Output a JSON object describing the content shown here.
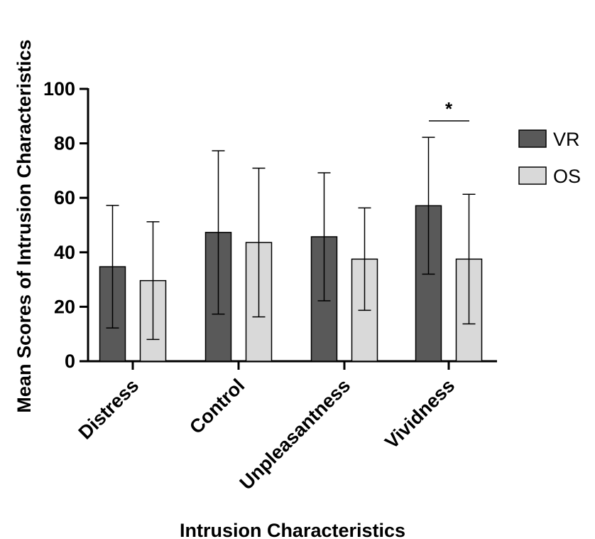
{
  "chart_data": {
    "type": "bar",
    "xlabel": "Intrusion Characteristics",
    "ylabel": "Mean Scores of Intrusion Characteristics",
    "ylim": [
      0,
      100
    ],
    "yticks": [
      0,
      20,
      40,
      60,
      80,
      100
    ],
    "categories": [
      "Distress",
      "Control",
      "Unpleasantness",
      "Vividness"
    ],
    "series": [
      {
        "name": "VR",
        "color": "#595959",
        "values": [
          34.7,
          47.3,
          45.7,
          57.1
        ],
        "error": [
          22.5,
          30.0,
          23.5,
          25.1
        ]
      },
      {
        "name": "OS",
        "color": "#d9d9d9",
        "values": [
          29.6,
          43.6,
          37.5,
          37.5
        ],
        "error": [
          21.6,
          27.3,
          18.8,
          23.8
        ]
      }
    ],
    "annotations": [
      {
        "text": "*",
        "category": "Vividness"
      }
    ],
    "legend": "right",
    "grid": false
  }
}
